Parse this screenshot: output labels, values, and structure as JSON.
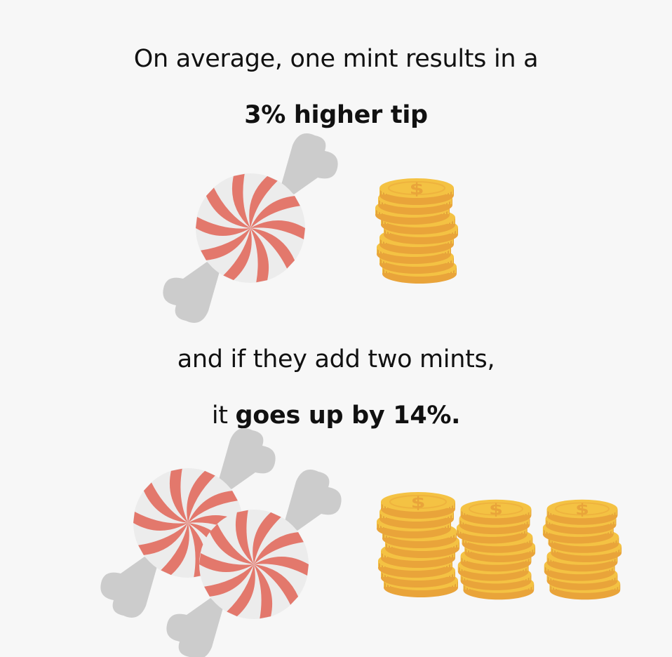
{
  "colors": {
    "background": "#f7f7f7",
    "candy_red": "#e3786c",
    "candy_white": "#ececec",
    "wrapper": "#cccccc",
    "coin_gold": "#f4c243",
    "coin_edge": "#e9a43a",
    "coin_symbol": "#e9a43a"
  },
  "icons": {
    "candy": "peppermint-candy-icon",
    "coins": "coin-stack-icon",
    "coin_symbol": "$"
  },
  "section1": {
    "intro": "On average, one mint results in a",
    "highlight": "3% higher tip",
    "mint_count": 1,
    "coin_stack_count": 1
  },
  "section2": {
    "line1": "and if they add two mints,",
    "line2_prefix": "it ",
    "line2_bold": "goes up by 14%.",
    "mint_count": 2,
    "coin_stack_count": 3
  }
}
